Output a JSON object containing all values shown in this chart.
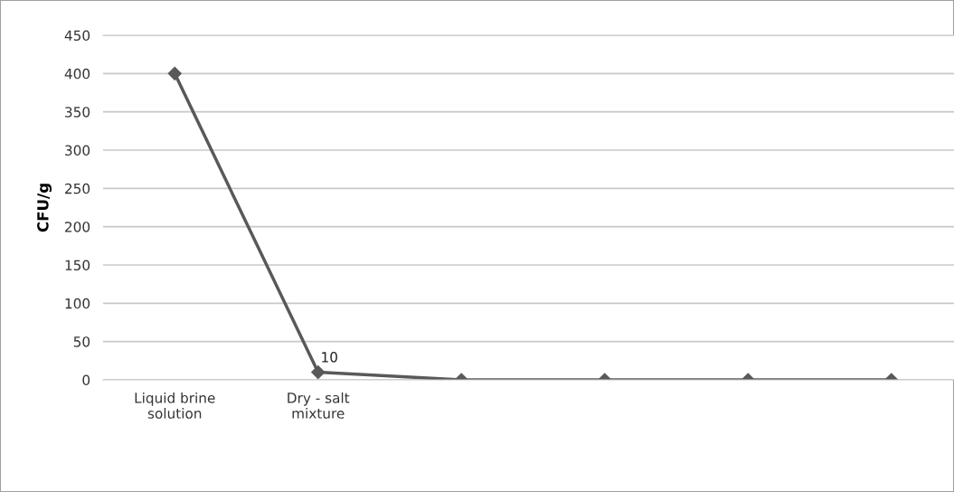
{
  "chart_data": {
    "type": "line",
    "ylabel": "CFU/g",
    "categories": [
      "Liquid brine solution",
      "Dry - salt mixture",
      null,
      null,
      null,
      null
    ],
    "series": [
      {
        "color": "#595959",
        "values": [
          400,
          10,
          0,
          0,
          0,
          0
        ],
        "value_labels": [
          null,
          "10",
          null,
          null,
          null,
          null
        ]
      }
    ],
    "ylim": [
      0,
      450
    ],
    "yticks": [
      0,
      50,
      100,
      150,
      200,
      250,
      300,
      350,
      400,
      450
    ],
    "grid": "y",
    "marker": "diamond",
    "line_style": "solid",
    "legend": false
  }
}
